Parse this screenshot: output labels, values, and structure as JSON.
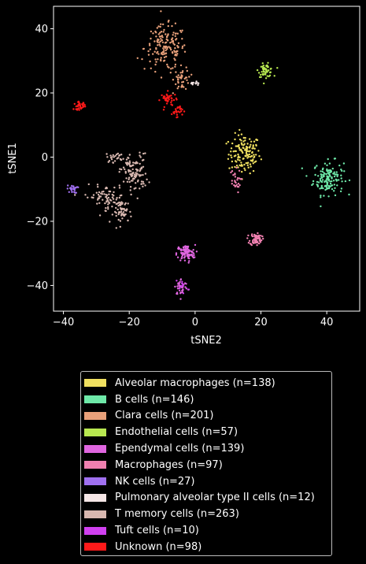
{
  "chart_data": {
    "type": "scatter",
    "title": "",
    "xlabel": "tSNE2",
    "ylabel": "tSNE1",
    "xlim": [
      -43,
      50
    ],
    "ylim": [
      -48,
      47
    ],
    "xticks": [
      -40,
      -20,
      0,
      20,
      40
    ],
    "yticks": [
      -40,
      -20,
      0,
      20,
      40
    ],
    "xtick_labels": [
      "−40",
      "−20",
      "0",
      "20",
      "40"
    ],
    "ytick_labels": [
      "−40",
      "−20",
      "0",
      "20",
      "40"
    ],
    "grid": false,
    "legend_position": "below",
    "series": [
      {
        "name": "Alveolar macrophages (n=138)",
        "color": "#f0e060",
        "n": 138,
        "clusters": [
          {
            "cx": 15,
            "cy": 1,
            "sx": 2.4,
            "sy": 3.0,
            "n": 138
          }
        ]
      },
      {
        "name": "B cells (n=146)",
        "color": "#6ee8a8",
        "n": 146,
        "clusters": [
          {
            "cx": 40.5,
            "cy": -6.5,
            "sx": 2.3,
            "sy": 2.6,
            "n": 146
          }
        ]
      },
      {
        "name": "Clara cells (n=201)",
        "color": "#e8a07a",
        "n": 201,
        "clusters": [
          {
            "cx": -9,
            "cy": 34,
            "sx": 3.2,
            "sy": 3.5,
            "n": 160
          },
          {
            "cx": -4,
            "cy": 24.5,
            "sx": 1.2,
            "sy": 1.8,
            "n": 41
          }
        ]
      },
      {
        "name": "Endothelial cells (n=57)",
        "color": "#b8e850",
        "n": 57,
        "clusters": [
          {
            "cx": 21.5,
            "cy": 27,
            "sx": 1.1,
            "sy": 1.0,
            "n": 57
          }
        ]
      },
      {
        "name": "Ependymal cells (n=139)",
        "color": "#e066e0",
        "n": 139,
        "clusters": [
          {
            "cx": -2.8,
            "cy": -30,
            "sx": 1.4,
            "sy": 1.3,
            "n": 95
          },
          {
            "cx": -4.2,
            "cy": -40.5,
            "sx": 1.0,
            "sy": 1.3,
            "n": 44
          }
        ]
      },
      {
        "name": "Macrophages (n=97)",
        "color": "#f080b0",
        "n": 97,
        "clusters": [
          {
            "cx": 18.5,
            "cy": -25.5,
            "sx": 0.9,
            "sy": 1.0,
            "n": 70
          },
          {
            "cx": 12,
            "cy": -7.5,
            "sx": 0.9,
            "sy": 1.8,
            "n": 27
          }
        ]
      },
      {
        "name": "NK cells (n=27)",
        "color": "#a070f0",
        "n": 27,
        "clusters": [
          {
            "cx": -37.3,
            "cy": -10,
            "sx": 0.8,
            "sy": 0.6,
            "n": 27
          }
        ]
      },
      {
        "name": "Pulmonary alveolar type II cells (n=12)",
        "color": "#f5e6e6",
        "n": 12,
        "clusters": [
          {
            "cx": 0,
            "cy": 23,
            "sx": 0.6,
            "sy": 0.4,
            "n": 12
          }
        ]
      },
      {
        "name": "T memory cells (n=263)",
        "color": "#d8b8b0",
        "n": 263,
        "clusters": [
          {
            "cx": -18.5,
            "cy": -5,
            "sx": 2.0,
            "sy": 3.0,
            "n": 110
          },
          {
            "cx": -24,
            "cy": 0,
            "sx": 1.5,
            "sy": 0.8,
            "n": 25
          },
          {
            "cx": -27.5,
            "cy": -12.5,
            "sx": 3.0,
            "sy": 1.8,
            "n": 70
          },
          {
            "cx": -22,
            "cy": -17,
            "sx": 1.4,
            "sy": 1.8,
            "n": 58
          }
        ]
      },
      {
        "name": "Tuft cells (n=10)",
        "color": "#d040f0",
        "n": 10,
        "clusters": [
          {
            "cx": -4,
            "cy": -40,
            "sx": 0.8,
            "sy": 1.2,
            "n": 10
          }
        ]
      },
      {
        "name": "Unknown (n=98)",
        "color": "#ff1a1a",
        "n": 98,
        "clusters": [
          {
            "cx": -35,
            "cy": 16,
            "sx": 0.9,
            "sy": 0.6,
            "n": 33
          },
          {
            "cx": -8,
            "cy": 18,
            "sx": 1.2,
            "sy": 1.1,
            "n": 40
          },
          {
            "cx": -5.5,
            "cy": 14.5,
            "sx": 0.8,
            "sy": 0.9,
            "n": 25
          }
        ]
      }
    ]
  }
}
